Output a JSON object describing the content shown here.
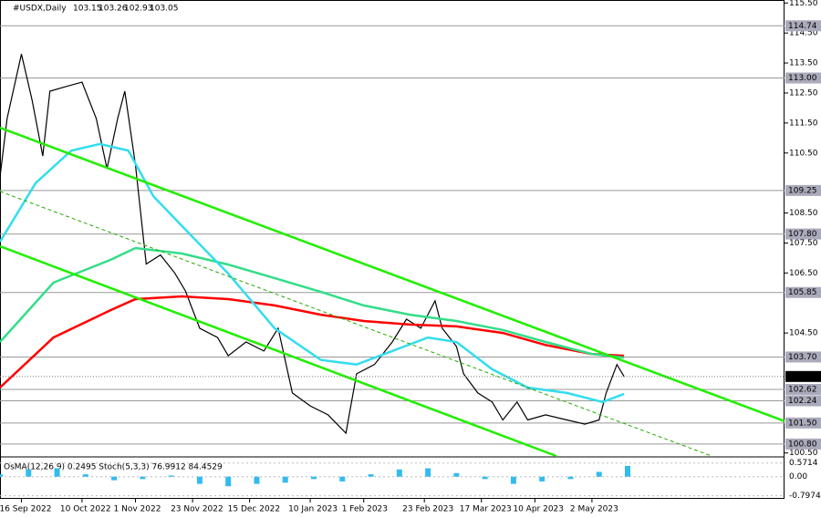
{
  "chart_data": {
    "type": "line",
    "symbol": "#USDX,Daily",
    "ohlc": [
      103.15,
      103.26,
      102.93,
      103.05
    ],
    "xlim": [
      0,
      220
    ],
    "ylim": [
      100.4,
      115.6
    ],
    "xticks": [
      {
        "value": 6,
        "label": "16 Sep 2022"
      },
      {
        "value": 23,
        "label": "10 Oct 2022"
      },
      {
        "value": 38,
        "label": "1 Nov 2022"
      },
      {
        "value": 54,
        "label": "23 Nov 2022"
      },
      {
        "value": 70,
        "label": "15 Dec 2022"
      },
      {
        "value": 87,
        "label": "10 Jan 2023"
      },
      {
        "value": 102,
        "label": "1 Feb 2023"
      },
      {
        "value": 119,
        "label": "23 Feb 2023"
      },
      {
        "value": 135,
        "label": "17 Mar 2023"
      },
      {
        "value": 150,
        "label": "10 Apr 2023"
      },
      {
        "value": 166,
        "label": "2 May 2023"
      }
    ],
    "yticks": [
      {
        "value": 115.5,
        "label": "115.50"
      },
      {
        "value": 114.5,
        "label": "114.50"
      },
      {
        "value": 113.5,
        "label": "113.50"
      },
      {
        "value": 112.5,
        "label": "112.50"
      },
      {
        "value": 111.5,
        "label": "111.50"
      },
      {
        "value": 110.5,
        "label": "110.50"
      },
      {
        "value": 108.5,
        "label": "108.50"
      },
      {
        "value": 107.5,
        "label": "107.50"
      },
      {
        "value": 106.5,
        "label": "106.50"
      },
      {
        "value": 104.5,
        "label": "104.50"
      },
      {
        "value": 100.5,
        "label": "100.50"
      }
    ],
    "levels": [
      114.74,
      {
        "value": 113,
        "label": "113.00"
      },
      109.25,
      {
        "value": 107.8,
        "label": "107.80"
      },
      105.85,
      {
        "value": 103.7,
        "label": "103.70"
      },
      102.62,
      102.24,
      {
        "value": 101.5,
        "label": "101.50"
      },
      {
        "value": 100.8,
        "label": "100.80"
      }
    ],
    "last": 103.05,
    "series": [
      {
        "color": "#000000",
        "x": [
          0,
          2,
          6,
          9,
          12,
          14,
          18,
          23,
          27,
          30,
          33,
          35,
          38,
          41,
          45,
          49,
          52,
          56,
          61,
          64,
          69,
          74,
          78,
          82,
          87,
          92,
          97,
          100,
          105,
          110,
          114,
          118,
          122,
          124,
          128,
          130,
          134,
          138,
          141,
          145,
          148,
          153,
          159,
          164,
          168,
          170,
          173,
          175
        ],
        "values": [
          109.7,
          111.65,
          113.8,
          112.26,
          110.4,
          112.56,
          112.7,
          112.86,
          111.65,
          109.98,
          111.65,
          112.56,
          110.1,
          106.8,
          107.1,
          106.5,
          105.9,
          104.66,
          104.35,
          103.74,
          104.2,
          103.9,
          104.66,
          102.5,
          102.07,
          101.77,
          101.16,
          103.14,
          103.45,
          104.2,
          104.96,
          104.66,
          105.57,
          104.66,
          104.05,
          103.14,
          102.5,
          102.2,
          101.6,
          102.2,
          101.6,
          101.77,
          101.6,
          101.46,
          101.6,
          102.5,
          103.45,
          103.05
        ]
      },
      {
        "color": "#ff0000",
        "x": [
          0,
          15,
          31,
          38,
          51,
          64,
          77,
          90,
          102,
          115,
          128,
          141,
          153,
          166,
          175
        ],
        "values": [
          102.68,
          104.35,
          105.26,
          105.63,
          105.72,
          105.63,
          105.42,
          105.11,
          104.9,
          104.78,
          104.72,
          104.5,
          104.1,
          103.8,
          103.74
        ]
      },
      {
        "color": "#33dd88",
        "x": [
          0,
          15,
          31,
          38,
          51,
          64,
          77,
          90,
          102,
          115,
          128,
          141,
          153,
          166,
          175
        ],
        "values": [
          104.2,
          106.18,
          106.94,
          107.33,
          107.15,
          106.78,
          106.33,
          105.87,
          105.42,
          105.11,
          104.9,
          104.6,
          104.2,
          103.8,
          103.68
        ]
      },
      {
        "color": "#33ddee",
        "x": [
          0,
          10,
          20,
          28,
          36,
          43,
          54,
          64,
          77,
          90,
          100,
          110,
          120,
          128,
          138,
          148,
          159,
          169,
          175
        ],
        "values": [
          107.54,
          109.5,
          110.58,
          110.8,
          110.58,
          109.06,
          107.7,
          106.48,
          104.66,
          103.6,
          103.45,
          103.9,
          104.35,
          104.2,
          103.29,
          102.68,
          102.5,
          102.2,
          102.47
        ]
      },
      {
        "color": "#22ee00",
        "x": [
          0,
          220
        ],
        "values": [
          111.34,
          101.56
        ]
      },
      {
        "color": "#22ee00",
        "x": [
          0,
          156
        ],
        "values": [
          107.39,
          100.4
        ]
      },
      {
        "color": "#22aa00",
        "dashed": true,
        "x": [
          0,
          199.5
        ],
        "values": [
          109.22,
          100.4
        ]
      }
    ],
    "indicator": {
      "label": "OsMA(12,26,9) 0.2495  Stoch(5,3,3) 76.9912 84.4529",
      "color": "#33bbee",
      "ylim": [
        -0.85,
        0.75
      ],
      "yticks": [
        0.5714,
        {
          "value": 0,
          "label": "0.00"
        },
        -0.7974
      ],
      "x": [
        0,
        8,
        16,
        24,
        32,
        40,
        48,
        56,
        64,
        72,
        80,
        88,
        96,
        104,
        112,
        120,
        128,
        136,
        144,
        152,
        160,
        168,
        176
      ],
      "values": [
        0.1,
        0.3,
        0.35,
        0.1,
        -0.15,
        -0.1,
        0.05,
        -0.3,
        -0.4,
        -0.3,
        -0.25,
        -0.1,
        -0.2,
        0.1,
        0.3,
        0.35,
        0.15,
        -0.1,
        -0.3,
        -0.2,
        -0.1,
        0.2,
        0.45
      ]
    }
  }
}
